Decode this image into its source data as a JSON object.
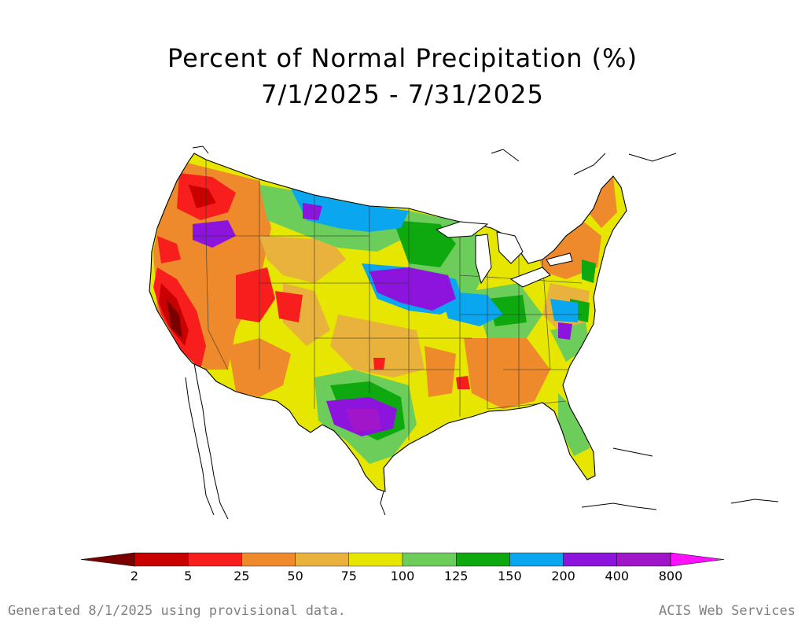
{
  "title": {
    "line1": "Percent of Normal Precipitation (%)",
    "line2": "7/1/2025 - 7/31/2025"
  },
  "legend": {
    "ticks": [
      "2",
      "5",
      "25",
      "50",
      "75",
      "100",
      "125",
      "150",
      "200",
      "400",
      "800"
    ],
    "colors": {
      "under_2": "#7a0000",
      "2_5": "#c80000",
      "5_25": "#f81e1e",
      "25_50": "#ee8a2c",
      "50_75": "#e8b23c",
      "75_100": "#e6e600",
      "100_125": "#6ccd5a",
      "125_150": "#0ea90e",
      "150_200": "#0aa6f0",
      "200_400": "#8c14dc",
      "400_800": "#a016c8",
      "over_800": "#ff10ff"
    }
  },
  "footer": {
    "left": "Generated 8/1/2025 using provisional data.",
    "right": "ACIS Web Services"
  }
}
